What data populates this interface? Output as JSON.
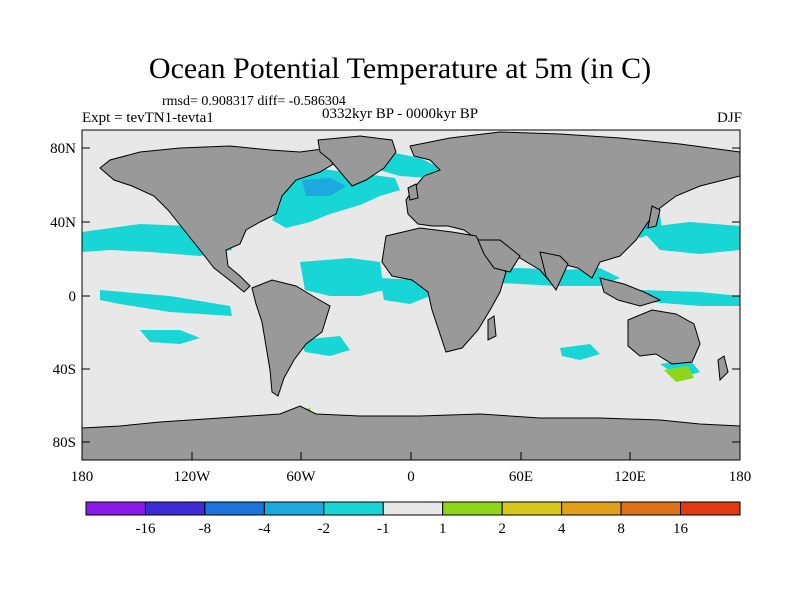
{
  "title": "Ocean Potential Temperature at 5m (in C)",
  "stats": "rmsd= 0.908317 diff= -0.586304",
  "experiment": "Expt = tevTN1-tevta1",
  "period": "0332kyr BP - 0000kyr BP",
  "season": "DJF",
  "lat_ticks": [
    "80N",
    "40N",
    "0",
    "40S",
    "80S"
  ],
  "lon_ticks": [
    "180",
    "120W",
    "60W",
    "0",
    "60E",
    "120E",
    "180"
  ],
  "colorbar": {
    "labels": [
      "-16",
      "-8",
      "-4",
      "-2",
      "-1",
      "1",
      "2",
      "4",
      "8",
      "16"
    ],
    "colors": [
      "#8b1ae8",
      "#3c2bd6",
      "#1a74d9",
      "#1ea8e0",
      "#19d6d6",
      "#e8e8e8",
      "#8fd61a",
      "#d6c81a",
      "#e0a01a",
      "#e0701a",
      "#e03a10"
    ]
  },
  "colors": {
    "land": "#999999",
    "ocean": "#e8e8e8",
    "cool": "#19d6d6",
    "cool_dark": "#1ea8e0",
    "warm": "#8fd61a"
  }
}
